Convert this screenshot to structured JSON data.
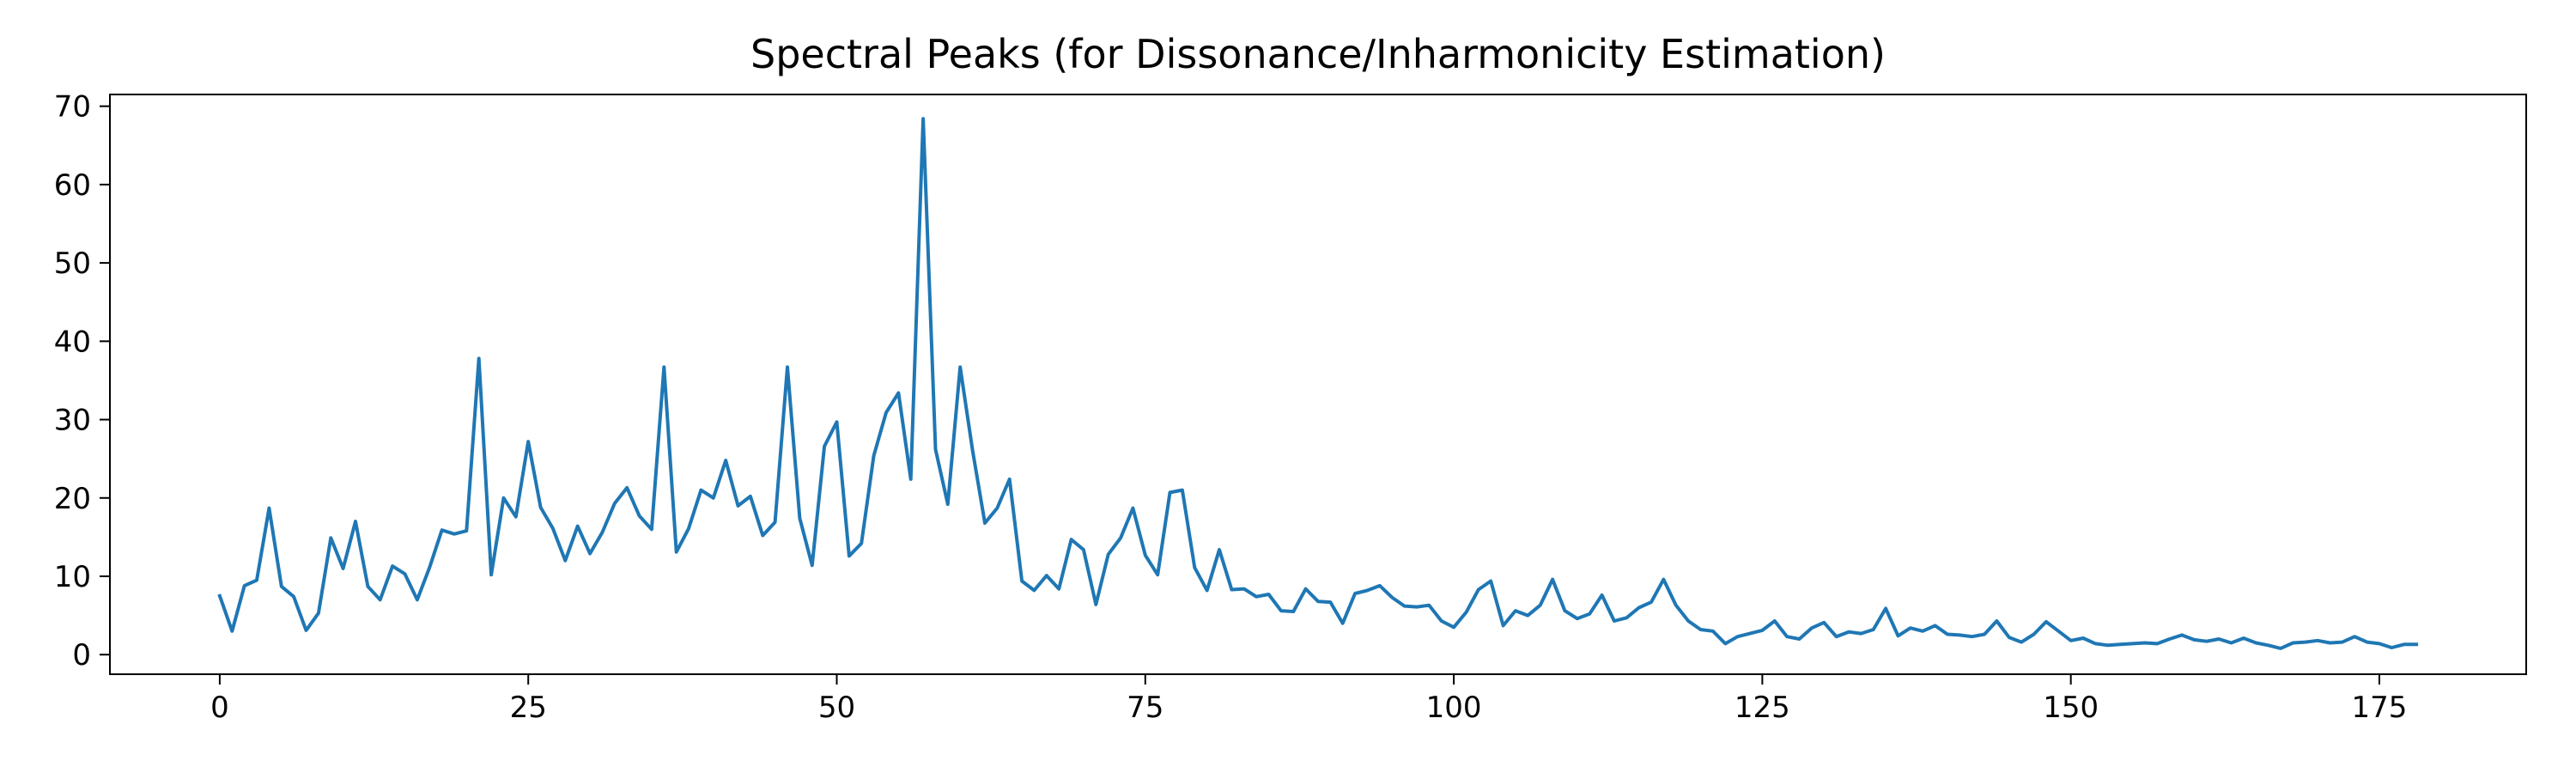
{
  "chart_data": {
    "type": "line",
    "title": "Spectral Peaks (for Dissonance/Inharmonicity Estimation)",
    "xlabel": "",
    "ylabel": "",
    "xlim": [
      -8.9,
      186.9
    ],
    "ylim": [
      -2.5,
      71.5
    ],
    "xticks": [
      0,
      25,
      50,
      75,
      100,
      125,
      150,
      175
    ],
    "yticks": [
      0,
      10,
      20,
      30,
      40,
      50,
      60,
      70
    ],
    "grid": false,
    "legend": "none",
    "series": [
      {
        "color": "#1f77b4",
        "x_start": 0,
        "x_step": 1,
        "values": [
          7.5,
          3.0,
          8.8,
          9.5,
          18.7,
          8.7,
          7.4,
          3.1,
          5.3,
          14.9,
          11.0,
          17.0,
          8.7,
          7.0,
          11.3,
          10.3,
          7.0,
          11.1,
          15.9,
          15.4,
          15.8,
          37.8,
          10.2,
          20.0,
          17.6,
          27.2,
          18.8,
          16.1,
          12.0,
          16.4,
          12.9,
          15.6,
          19.3,
          21.3,
          17.7,
          16.0,
          36.7,
          13.1,
          16.1,
          21.0,
          20.0,
          24.8,
          19.0,
          20.2,
          15.2,
          16.9,
          36.7,
          17.4,
          11.4,
          26.6,
          29.7,
          12.6,
          14.2,
          25.4,
          30.9,
          33.4,
          22.4,
          68.4,
          26.2,
          19.2,
          36.7,
          26.1,
          16.8,
          18.7,
          22.4,
          9.4,
          8.2,
          10.1,
          8.4,
          14.7,
          13.4,
          6.4,
          12.8,
          14.9,
          18.7,
          12.7,
          10.2,
          20.7,
          21.0,
          11.1,
          8.2,
          13.4,
          8.3,
          8.4,
          7.4,
          7.7,
          5.6,
          5.5,
          8.4,
          6.8,
          6.7,
          4.0,
          7.8,
          8.2,
          8.8,
          7.3,
          6.2,
          6.1,
          6.3,
          4.3,
          3.5,
          5.4,
          8.3,
          9.4,
          3.7,
          5.6,
          5.0,
          6.3,
          9.6,
          5.6,
          4.6,
          5.2,
          7.6,
          4.3,
          4.7,
          6.0,
          6.7,
          9.6,
          6.3,
          4.3,
          3.2,
          3.0,
          1.4,
          2.3,
          2.7,
          3.1,
          4.3,
          2.3,
          2.0,
          3.4,
          4.1,
          2.3,
          2.9,
          2.7,
          3.2,
          5.9,
          2.4,
          3.4,
          3.0,
          3.7,
          2.6,
          2.5,
          2.3,
          2.6,
          4.3,
          2.2,
          1.6,
          2.6,
          4.2,
          3.0,
          1.8,
          2.1,
          1.4,
          1.2,
          1.3,
          1.4,
          1.5,
          1.4,
          2.0,
          2.5,
          1.9,
          1.7,
          2.0,
          1.5,
          2.1,
          1.5,
          1.2,
          0.8,
          1.5,
          1.6,
          1.8,
          1.5,
          1.6,
          2.3,
          1.6,
          1.4,
          0.9,
          1.3,
          1.3
        ]
      }
    ]
  }
}
